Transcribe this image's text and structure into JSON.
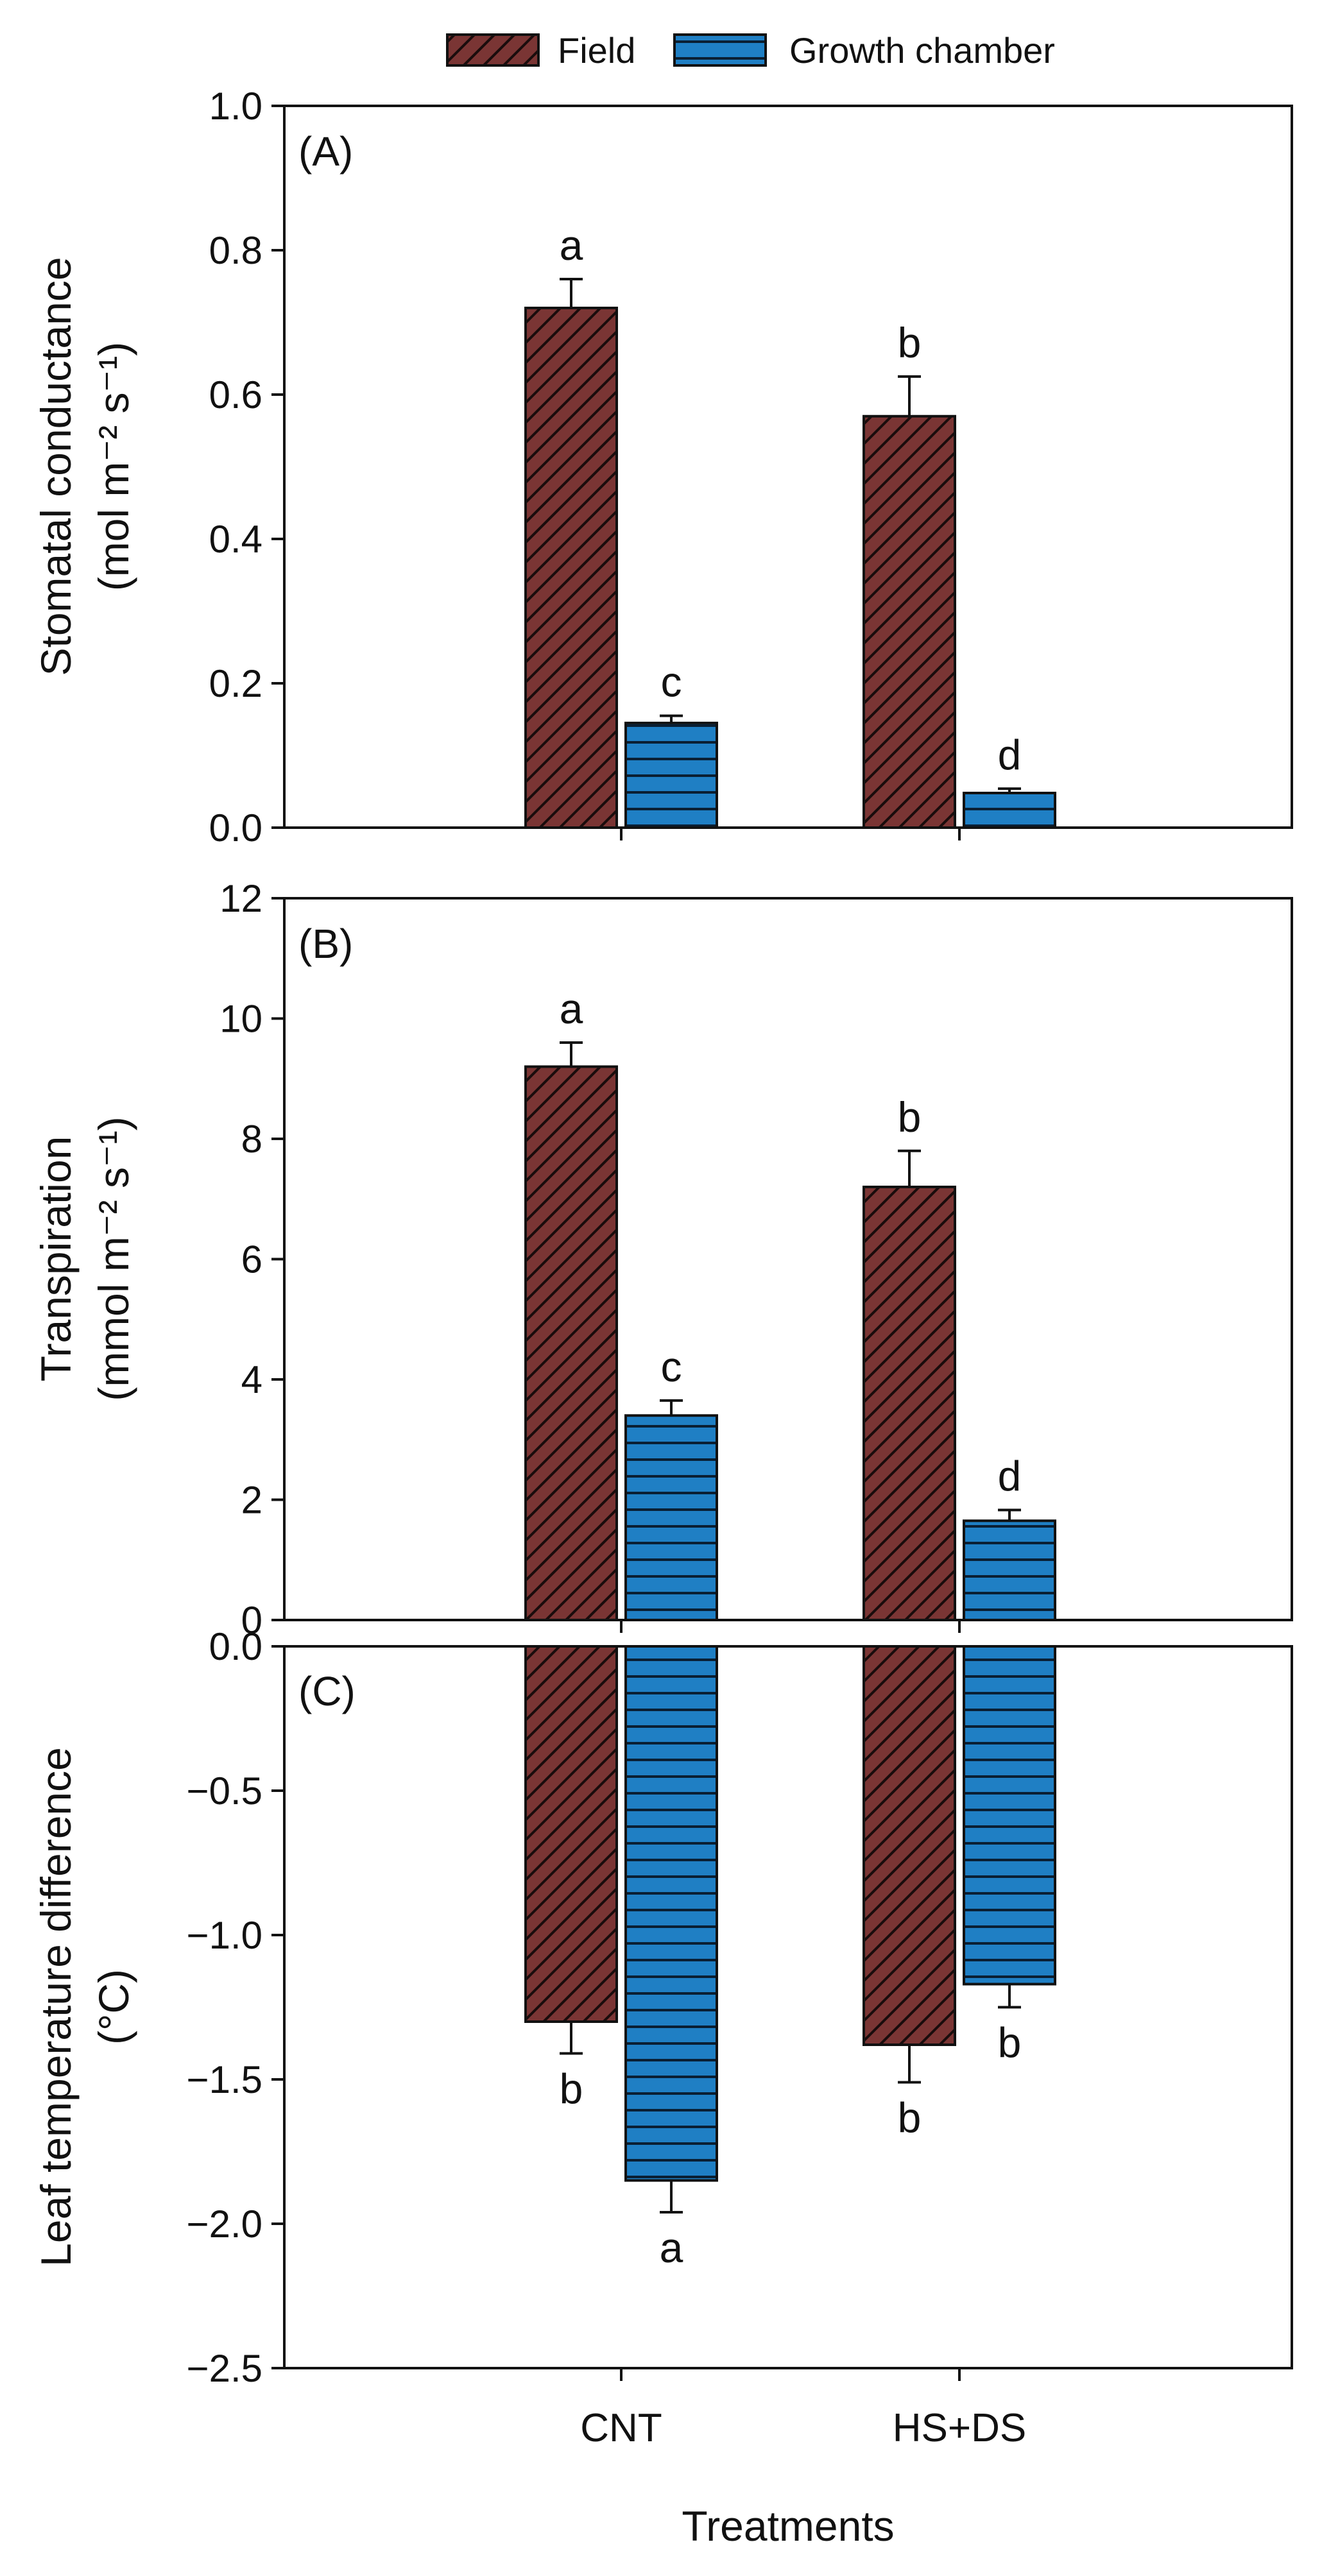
{
  "legend": [
    {
      "name": "Field",
      "color": "#7a3534",
      "pattern": "diagonal"
    },
    {
      "name": "Growth chamber",
      "color": "#1f7fc4",
      "pattern": "horizontal"
    }
  ],
  "xlabel": "Treatments",
  "chart_data": [
    {
      "type": "bar",
      "panel_label": "(A)",
      "categories": [
        "CNT",
        "HS+DS"
      ],
      "ylabel_line1": "Stomatal conductance",
      "ylabel_line2": "(mol m⁻² s⁻¹)",
      "ylim": [
        0,
        1.0
      ],
      "yticks": [
        "0.0",
        "0.2",
        "0.4",
        "0.6",
        "0.8",
        "1.0"
      ],
      "series": [
        {
          "name": "Field",
          "values": [
            0.72,
            0.57
          ],
          "errors": [
            0.04,
            0.055
          ],
          "letters": [
            "a",
            "b"
          ]
        },
        {
          "name": "Growth chamber",
          "values": [
            0.145,
            0.048
          ],
          "errors": [
            0.01,
            0.006
          ],
          "letters": [
            "c",
            "d"
          ]
        }
      ]
    },
    {
      "type": "bar",
      "panel_label": "(B)",
      "categories": [
        "CNT",
        "HS+DS"
      ],
      "ylabel_line1": "Transpiration",
      "ylabel_line2": "(mmol m⁻² s⁻¹)",
      "ylim": [
        0,
        12
      ],
      "yticks": [
        "0",
        "2",
        "4",
        "6",
        "8",
        "10",
        "12"
      ],
      "series": [
        {
          "name": "Field",
          "values": [
            9.2,
            7.2
          ],
          "errors": [
            0.4,
            0.6
          ],
          "letters": [
            "a",
            "b"
          ]
        },
        {
          "name": "Growth chamber",
          "values": [
            3.4,
            1.65
          ],
          "errors": [
            0.25,
            0.18
          ],
          "letters": [
            "c",
            "d"
          ]
        }
      ]
    },
    {
      "type": "bar",
      "panel_label": "(C)",
      "categories": [
        "CNT",
        "HS+DS"
      ],
      "ylabel_line1": "Leaf temperature difference",
      "ylabel_line2": "(°C)",
      "ylim": [
        -2.5,
        0.0
      ],
      "yticks": [
        "−2.5",
        "−2.0",
        "−1.5",
        "−1.0",
        "−0.5",
        "0.0"
      ],
      "series": [
        {
          "name": "Field",
          "values": [
            -1.3,
            -1.38
          ],
          "errors": [
            0.11,
            0.13
          ],
          "letters": [
            "b",
            "b"
          ]
        },
        {
          "name": "Growth chamber",
          "values": [
            -1.85,
            -1.17
          ],
          "errors": [
            0.11,
            0.08
          ],
          "letters": [
            "a",
            "b"
          ]
        }
      ]
    }
  ]
}
